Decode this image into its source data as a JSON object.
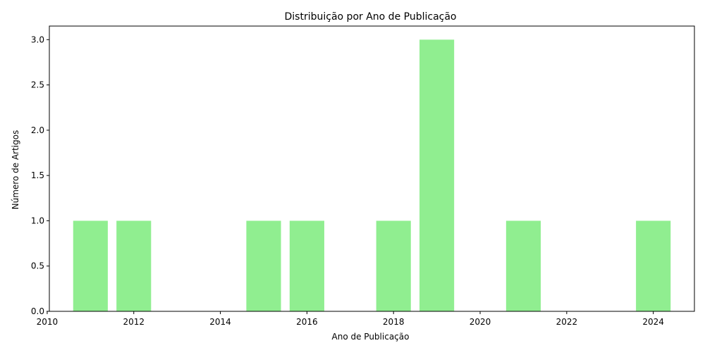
{
  "chart_data": {
    "type": "bar",
    "title": "Distribuição por Ano de Publicação",
    "xlabel": "Ano de Publicação",
    "ylabel": "Número de Artigos",
    "x": [
      2011,
      2012,
      2015,
      2016,
      2018,
      2019,
      2021,
      2024
    ],
    "values": [
      1,
      1,
      1,
      1,
      1,
      3,
      1,
      1
    ],
    "xlim": [
      2010.05,
      2024.95
    ],
    "ylim": [
      0,
      3.15
    ],
    "xticks": [
      2010,
      2012,
      2014,
      2016,
      2018,
      2020,
      2022,
      2024
    ],
    "yticks": [
      0.0,
      0.5,
      1.0,
      1.5,
      2.0,
      2.5,
      3.0
    ],
    "ytick_labels": [
      "0.0",
      "0.5",
      "1.0",
      "1.5",
      "2.0",
      "2.5",
      "3.0"
    ],
    "bar_width": 0.8,
    "bar_color": "#90EE90",
    "grid": false,
    "legend": "none"
  }
}
